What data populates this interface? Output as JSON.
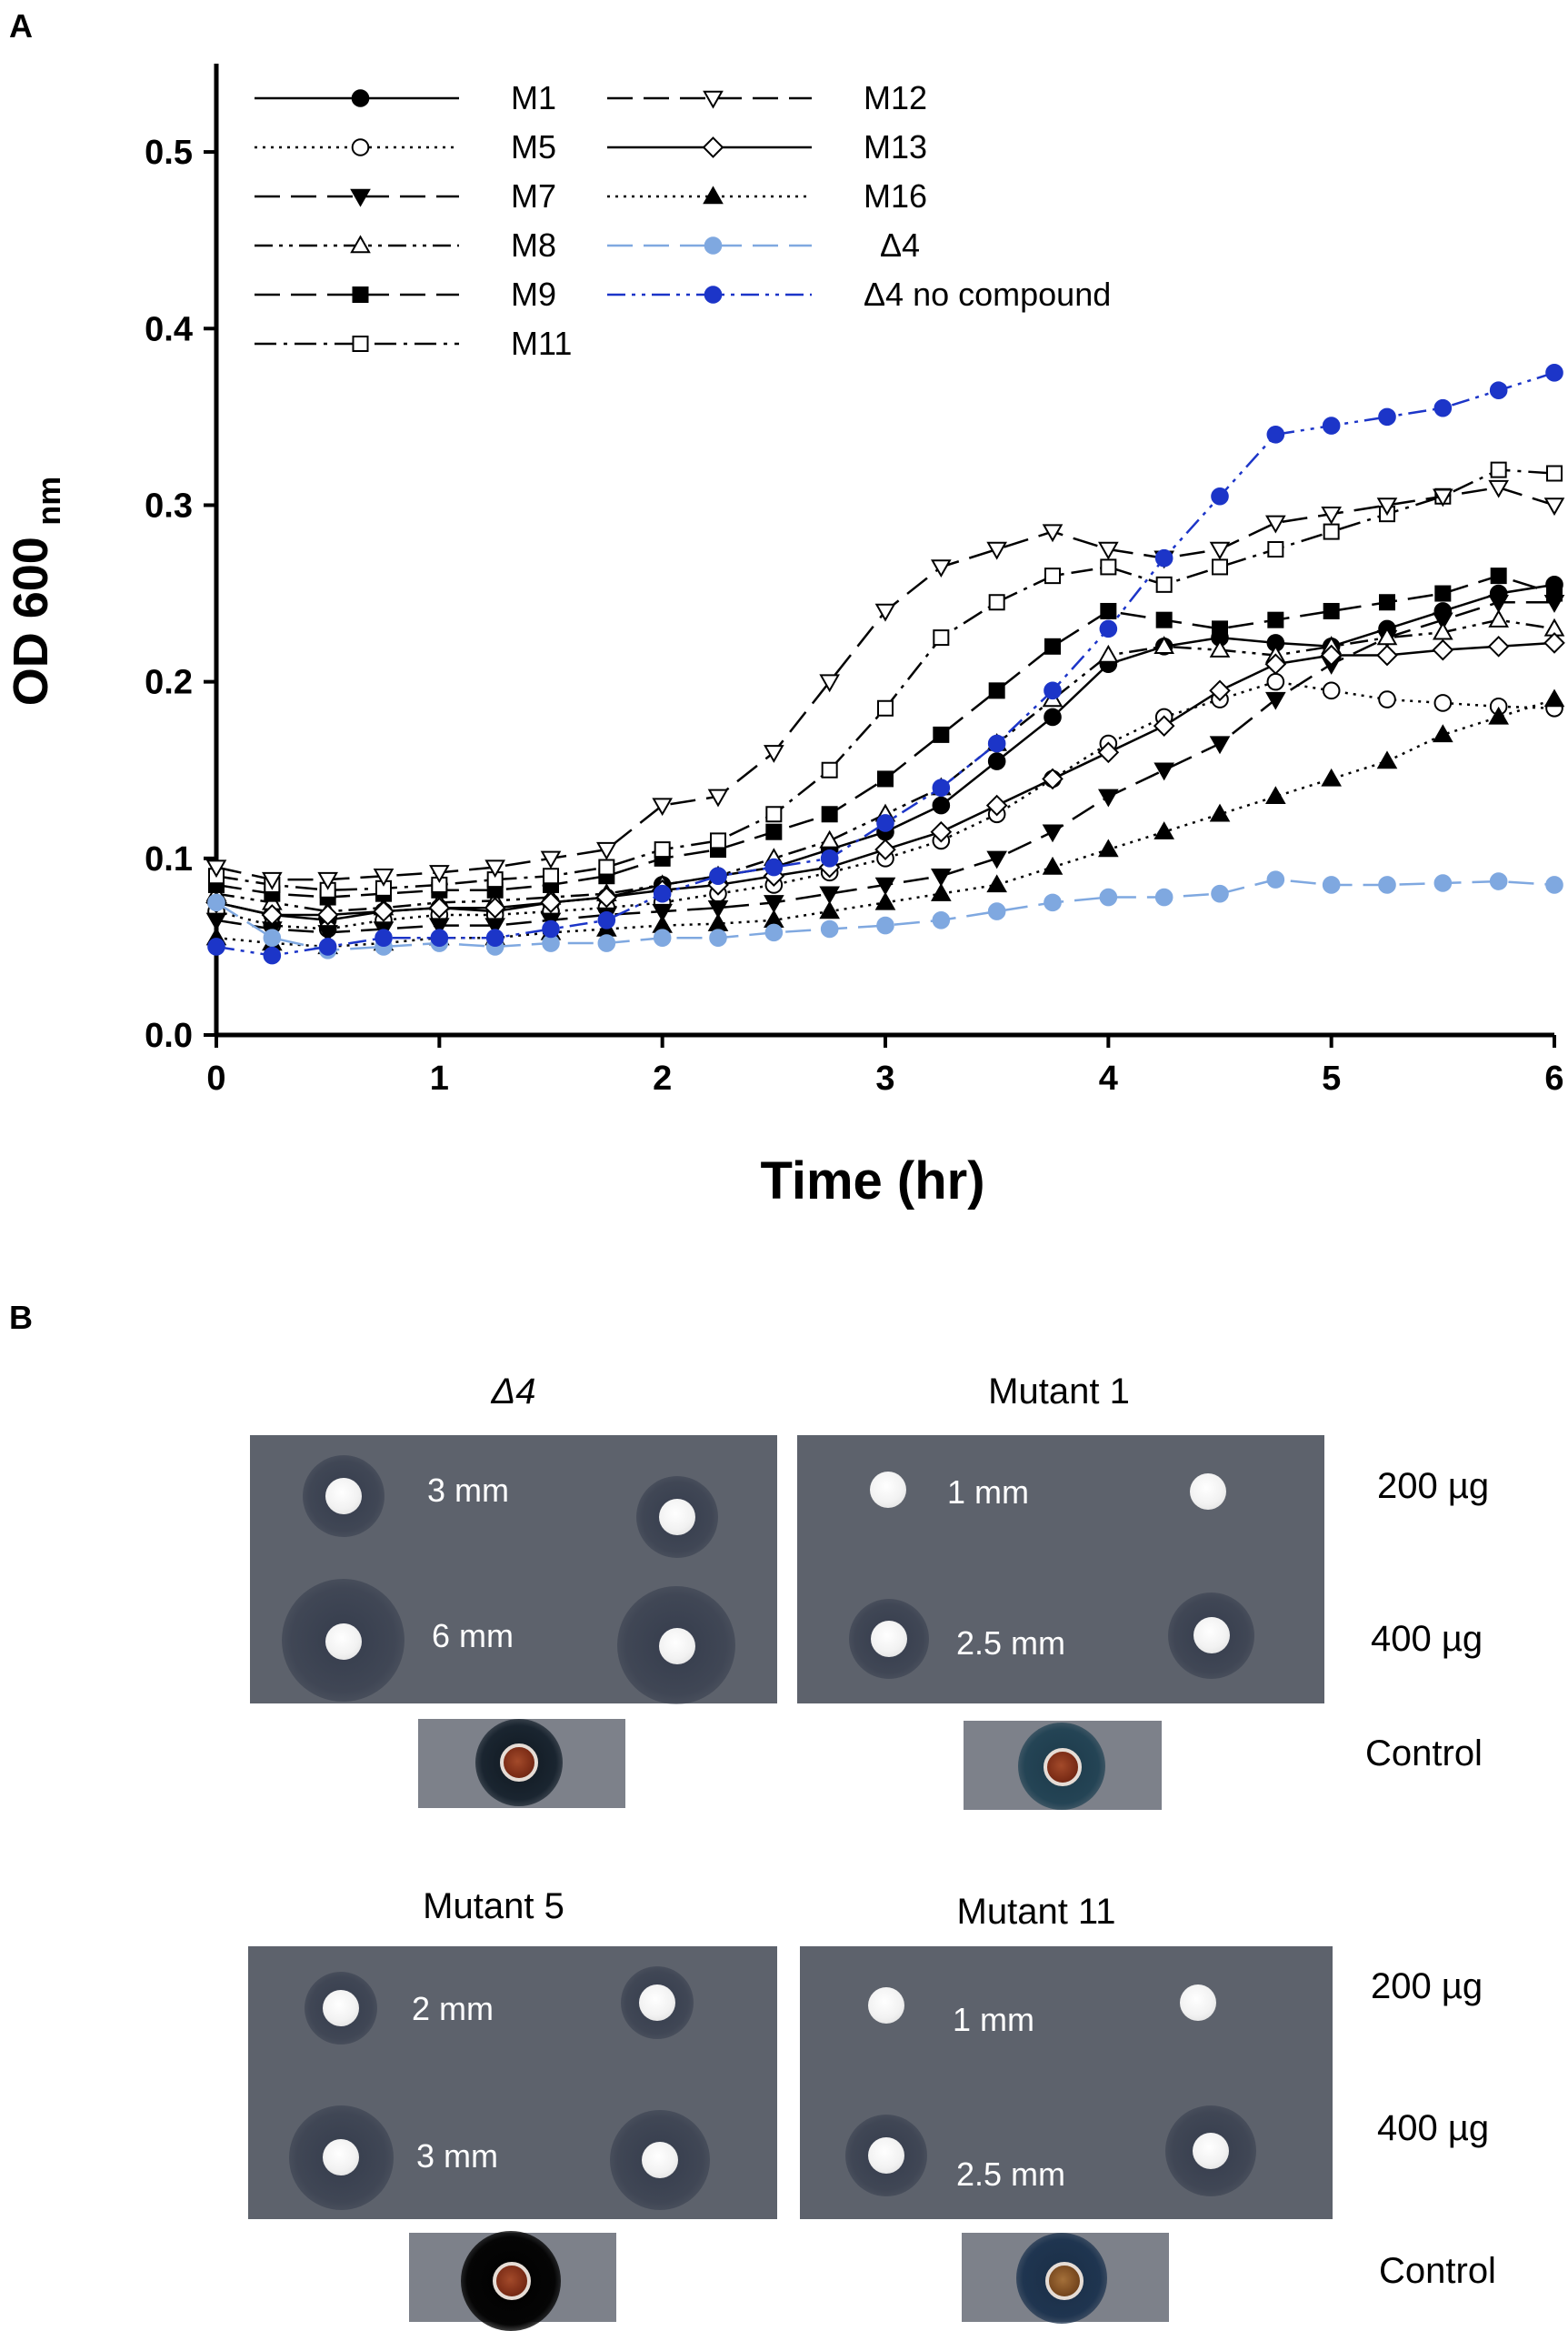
{
  "panel_a_label": "A",
  "panel_b_label": "B",
  "chart_data": {
    "type": "line",
    "xlabel": "Time (hr)",
    "ylabel_main": "OD 600",
    "ylabel_sub": "nm",
    "xlim": [
      0,
      6
    ],
    "ylim": [
      0,
      0.55
    ],
    "xticks": [
      0,
      1,
      2,
      3,
      4,
      5,
      6
    ],
    "yticks": [
      0.0,
      0.1,
      0.2,
      0.3,
      0.4,
      0.5
    ],
    "ytick_labels": [
      "0.0",
      "0.1",
      "0.2",
      "0.3",
      "0.4",
      "0.5"
    ],
    "series": [
      {
        "name": "M1",
        "marker": "circle-filled",
        "dash": "solid",
        "color": "#000000",
        "x": [
          0,
          0.25,
          0.5,
          0.75,
          1,
          1.25,
          1.5,
          1.75,
          2,
          2.25,
          2.5,
          2.75,
          3,
          3.25,
          3.5,
          3.75,
          4,
          4.25,
          4.5,
          4.75,
          5,
          5.25,
          5.5,
          5.75,
          6
        ],
        "y": [
          0.075,
          0.068,
          0.065,
          0.07,
          0.072,
          0.07,
          0.075,
          0.078,
          0.085,
          0.09,
          0.095,
          0.105,
          0.115,
          0.13,
          0.155,
          0.18,
          0.21,
          0.22,
          0.225,
          0.222,
          0.22,
          0.23,
          0.24,
          0.25,
          0.255
        ]
      },
      {
        "name": "M5",
        "marker": "circle-open",
        "dash": "dotted",
        "color": "#000000",
        "x": [
          0,
          0.25,
          0.5,
          0.75,
          1,
          1.25,
          1.5,
          1.75,
          2,
          2.25,
          2.5,
          2.75,
          3,
          3.25,
          3.5,
          3.75,
          4,
          4.25,
          4.5,
          4.75,
          5,
          5.25,
          5.5,
          5.75,
          6
        ],
        "y": [
          0.07,
          0.062,
          0.06,
          0.065,
          0.068,
          0.068,
          0.07,
          0.072,
          0.075,
          0.08,
          0.085,
          0.092,
          0.1,
          0.11,
          0.125,
          0.145,
          0.165,
          0.18,
          0.19,
          0.2,
          0.195,
          0.19,
          0.188,
          0.186,
          0.185
        ]
      },
      {
        "name": "M7",
        "marker": "triangle-down-filled",
        "dash": "longdash",
        "color": "#000000",
        "x": [
          0,
          0.25,
          0.5,
          0.75,
          1,
          1.25,
          1.5,
          1.75,
          2,
          2.25,
          2.5,
          2.75,
          3,
          3.25,
          3.5,
          3.75,
          4,
          4.25,
          4.5,
          4.75,
          5,
          5.25,
          5.5,
          5.75,
          6
        ],
        "y": [
          0.065,
          0.06,
          0.058,
          0.06,
          0.062,
          0.062,
          0.065,
          0.068,
          0.07,
          0.072,
          0.075,
          0.08,
          0.085,
          0.09,
          0.1,
          0.115,
          0.135,
          0.15,
          0.165,
          0.19,
          0.21,
          0.225,
          0.235,
          0.245,
          0.245
        ]
      },
      {
        "name": "M8",
        "marker": "triangle-up-open",
        "dash": "dashdotdot",
        "color": "#000000",
        "x": [
          0,
          0.25,
          0.5,
          0.75,
          1,
          1.25,
          1.5,
          1.75,
          2,
          2.25,
          2.5,
          2.75,
          3,
          3.25,
          3.5,
          3.75,
          4,
          4.25,
          4.5,
          4.75,
          5,
          5.25,
          5.5,
          5.75,
          6
        ],
        "y": [
          0.08,
          0.075,
          0.07,
          0.072,
          0.075,
          0.076,
          0.078,
          0.08,
          0.085,
          0.09,
          0.1,
          0.11,
          0.125,
          0.14,
          0.165,
          0.19,
          0.215,
          0.22,
          0.218,
          0.215,
          0.22,
          0.225,
          0.228,
          0.235,
          0.23
        ]
      },
      {
        "name": "M9",
        "marker": "square-filled",
        "dash": "longdash",
        "color": "#000000",
        "x": [
          0,
          0.25,
          0.5,
          0.75,
          1,
          1.25,
          1.5,
          1.75,
          2,
          2.25,
          2.5,
          2.75,
          3,
          3.25,
          3.5,
          3.75,
          4,
          4.25,
          4.5,
          4.75,
          5,
          5.25,
          5.5,
          5.75,
          6
        ],
        "y": [
          0.085,
          0.08,
          0.078,
          0.08,
          0.082,
          0.082,
          0.085,
          0.09,
          0.1,
          0.105,
          0.115,
          0.125,
          0.145,
          0.17,
          0.195,
          0.22,
          0.24,
          0.235,
          0.23,
          0.235,
          0.24,
          0.245,
          0.25,
          0.26,
          0.25
        ]
      },
      {
        "name": "M11",
        "marker": "square-open",
        "dash": "dashdot",
        "color": "#000000",
        "x": [
          0,
          0.25,
          0.5,
          0.75,
          1,
          1.25,
          1.5,
          1.75,
          2,
          2.25,
          2.5,
          2.75,
          3,
          3.25,
          3.5,
          3.75,
          4,
          4.25,
          4.5,
          4.75,
          5,
          5.25,
          5.5,
          5.75,
          6
        ],
        "y": [
          0.09,
          0.085,
          0.082,
          0.083,
          0.085,
          0.088,
          0.09,
          0.095,
          0.105,
          0.11,
          0.125,
          0.15,
          0.185,
          0.225,
          0.245,
          0.26,
          0.265,
          0.255,
          0.265,
          0.275,
          0.285,
          0.295,
          0.305,
          0.32,
          0.318
        ]
      },
      {
        "name": "M12",
        "marker": "triangle-down-open",
        "dash": "longdash",
        "color": "#000000",
        "x": [
          0,
          0.25,
          0.5,
          0.75,
          1,
          1.25,
          1.5,
          1.75,
          2,
          2.25,
          2.5,
          2.75,
          3,
          3.25,
          3.5,
          3.75,
          4,
          4.25,
          4.5,
          4.75,
          5,
          5.25,
          5.5,
          5.75,
          6
        ],
        "y": [
          0.095,
          0.088,
          0.088,
          0.09,
          0.092,
          0.095,
          0.1,
          0.105,
          0.13,
          0.135,
          0.16,
          0.2,
          0.24,
          0.265,
          0.275,
          0.285,
          0.275,
          0.27,
          0.275,
          0.29,
          0.295,
          0.3,
          0.305,
          0.31,
          0.3
        ]
      },
      {
        "name": "M13",
        "marker": "diamond-open",
        "dash": "solid",
        "color": "#000000",
        "x": [
          0,
          0.25,
          0.5,
          0.75,
          1,
          1.25,
          1.5,
          1.75,
          2,
          2.25,
          2.5,
          2.75,
          3,
          3.25,
          3.5,
          3.75,
          4,
          4.25,
          4.5,
          4.75,
          5,
          5.25,
          5.5,
          5.75,
          6
        ],
        "y": [
          0.075,
          0.068,
          0.068,
          0.07,
          0.072,
          0.072,
          0.075,
          0.078,
          0.082,
          0.085,
          0.09,
          0.095,
          0.105,
          0.115,
          0.13,
          0.145,
          0.16,
          0.175,
          0.195,
          0.21,
          0.215,
          0.215,
          0.218,
          0.22,
          0.222
        ]
      },
      {
        "name": "M16",
        "marker": "triangle-up-filled",
        "dash": "dotted",
        "color": "#000000",
        "x": [
          0,
          0.25,
          0.5,
          0.75,
          1,
          1.25,
          1.5,
          1.75,
          2,
          2.25,
          2.5,
          2.75,
          3,
          3.25,
          3.5,
          3.75,
          4,
          4.25,
          4.5,
          4.75,
          5,
          5.25,
          5.5,
          5.75,
          6
        ],
        "y": [
          0.055,
          0.052,
          0.05,
          0.052,
          0.055,
          0.055,
          0.058,
          0.06,
          0.062,
          0.063,
          0.065,
          0.07,
          0.075,
          0.08,
          0.085,
          0.095,
          0.105,
          0.115,
          0.125,
          0.135,
          0.145,
          0.155,
          0.17,
          0.18,
          0.19
        ]
      },
      {
        "name": "Δ4",
        "marker": "circle-filled",
        "dash": "longdash",
        "color": "#7fa8e0",
        "x": [
          0,
          0.25,
          0.5,
          0.75,
          1,
          1.25,
          1.5,
          1.75,
          2,
          2.25,
          2.5,
          2.75,
          3,
          3.25,
          3.5,
          3.75,
          4,
          4.25,
          4.5,
          4.75,
          5,
          5.25,
          5.5,
          5.75,
          6
        ],
        "y": [
          0.075,
          0.055,
          0.048,
          0.05,
          0.052,
          0.05,
          0.052,
          0.052,
          0.055,
          0.055,
          0.058,
          0.06,
          0.062,
          0.065,
          0.07,
          0.075,
          0.078,
          0.078,
          0.08,
          0.088,
          0.085,
          0.085,
          0.086,
          0.087,
          0.085
        ]
      },
      {
        "name": "Δ4 no compound",
        "marker": "circle-filled",
        "dash": "dashdotdot",
        "color": "#1c35c8",
        "x": [
          0,
          0.25,
          0.5,
          0.75,
          1,
          1.25,
          1.5,
          1.75,
          2,
          2.25,
          2.5,
          2.75,
          3,
          3.25,
          3.5,
          3.75,
          4,
          4.25,
          4.5,
          4.75,
          5,
          5.25,
          5.5,
          5.75,
          6
        ],
        "y": [
          0.05,
          0.045,
          0.05,
          0.055,
          0.055,
          0.055,
          0.06,
          0.065,
          0.08,
          0.09,
          0.095,
          0.1,
          0.12,
          0.14,
          0.165,
          0.195,
          0.23,
          0.27,
          0.305,
          0.34,
          0.345,
          0.35,
          0.355,
          0.365,
          0.375
        ]
      }
    ],
    "legend_columns": [
      [
        "M1",
        "M5",
        "M7",
        "M8",
        "M9",
        "M11"
      ],
      [
        "M12",
        "M13",
        "M16",
        "Δ4",
        "Δ4 no compound"
      ]
    ]
  },
  "panel_b": {
    "plates": [
      {
        "title": "Δ4",
        "zone_200": "3 mm",
        "zone_400": "6 mm"
      },
      {
        "title": "Mutant 1",
        "zone_200": "1 mm",
        "zone_400": "2.5 mm"
      },
      {
        "title": "Mutant 5",
        "zone_200": "2 mm",
        "zone_400": "3 mm"
      },
      {
        "title": "Mutant 11",
        "zone_200": "1 mm",
        "zone_400": "2.5 mm"
      }
    ],
    "row_labels": {
      "dose_200": "200 µg",
      "dose_400": "400 µg",
      "control": "Control"
    }
  }
}
